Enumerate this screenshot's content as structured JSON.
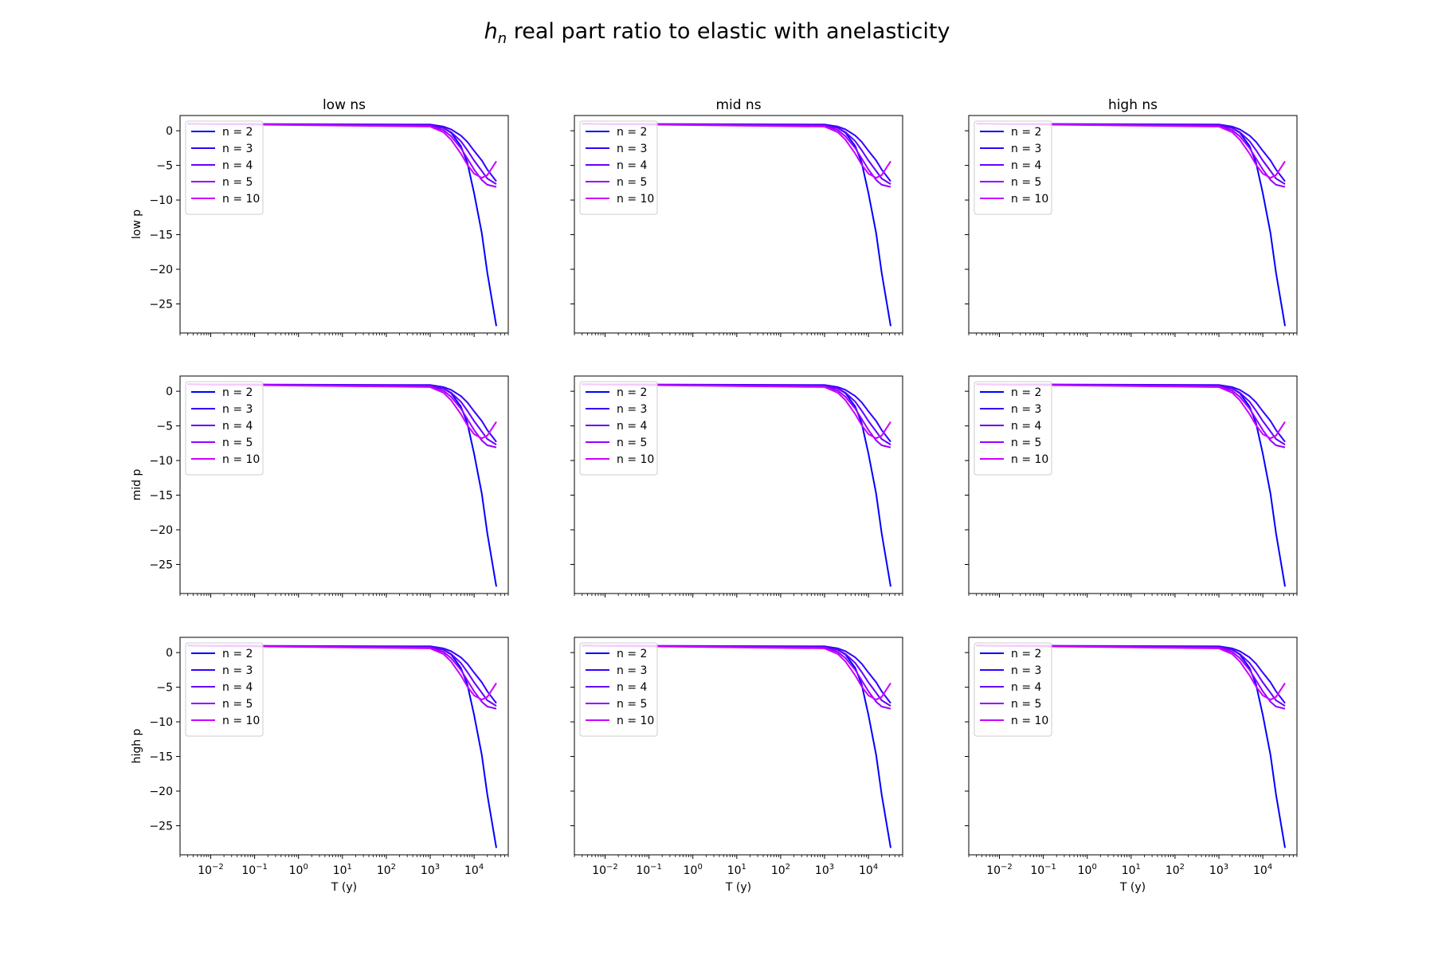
{
  "figure": {
    "title_main": "h",
    "title_sub": "n",
    "title_rest": " real part ratio to elastic with anelasticity"
  },
  "chart_data": {
    "type": "line",
    "x_scale": "log",
    "xlabel": "T (y)",
    "xlim": [
      0.002,
      60000
    ],
    "ylim": [
      -29.2,
      2.2
    ],
    "x_ticks": [
      0.01,
      0.1,
      1,
      10,
      100,
      1000,
      10000
    ],
    "x_tick_labels": [
      [
        "10",
        "−2"
      ],
      [
        "10",
        "−1"
      ],
      [
        "10",
        "0"
      ],
      [
        "10",
        "1"
      ],
      [
        "10",
        "2"
      ],
      [
        "10",
        "3"
      ],
      [
        "10",
        "4"
      ]
    ],
    "y_ticks": [
      0,
      -5,
      -10,
      -15,
      -20,
      -25
    ],
    "y_tick_labels": [
      "0",
      "−5",
      "−10",
      "−15",
      "−20",
      "−25"
    ],
    "legend_position": "upper left",
    "col_titles": [
      "low ns",
      "mid ns",
      "high ns"
    ],
    "row_labels": [
      "low p",
      "mid p",
      "high p"
    ],
    "x": [
      0.003,
      1000,
      2000,
      3000,
      5000,
      7000,
      10000,
      15000,
      20000,
      32000
    ],
    "series": [
      {
        "name": "n = 2",
        "color": "#0000ff",
        "values": [
          1,
          0.8,
          0.4,
          -0.3,
          -2.2,
          -4.6,
          -9.0,
          -14.8,
          -20.5,
          -28.2
        ]
      },
      {
        "name": "n = 3",
        "color": "#3300ff",
        "values": [
          1,
          0.9,
          0.6,
          0.2,
          -0.7,
          -1.6,
          -2.9,
          -4.3,
          -5.6,
          -7.3
        ]
      },
      {
        "name": "n = 4",
        "color": "#6600ff",
        "values": [
          1,
          0.8,
          0.4,
          -0.2,
          -1.5,
          -2.8,
          -4.3,
          -5.8,
          -6.9,
          -7.7
        ]
      },
      {
        "name": "n = 5",
        "color": "#9900ff",
        "values": [
          1,
          0.7,
          0.1,
          -0.8,
          -2.5,
          -4.0,
          -5.6,
          -7.1,
          -7.8,
          -8.1
        ]
      },
      {
        "name": "n = 10",
        "color": "#cc00ff",
        "values": [
          1,
          0.6,
          -0.2,
          -1.3,
          -3.3,
          -4.9,
          -6.2,
          -6.8,
          -6.4,
          -4.4
        ]
      }
    ]
  }
}
